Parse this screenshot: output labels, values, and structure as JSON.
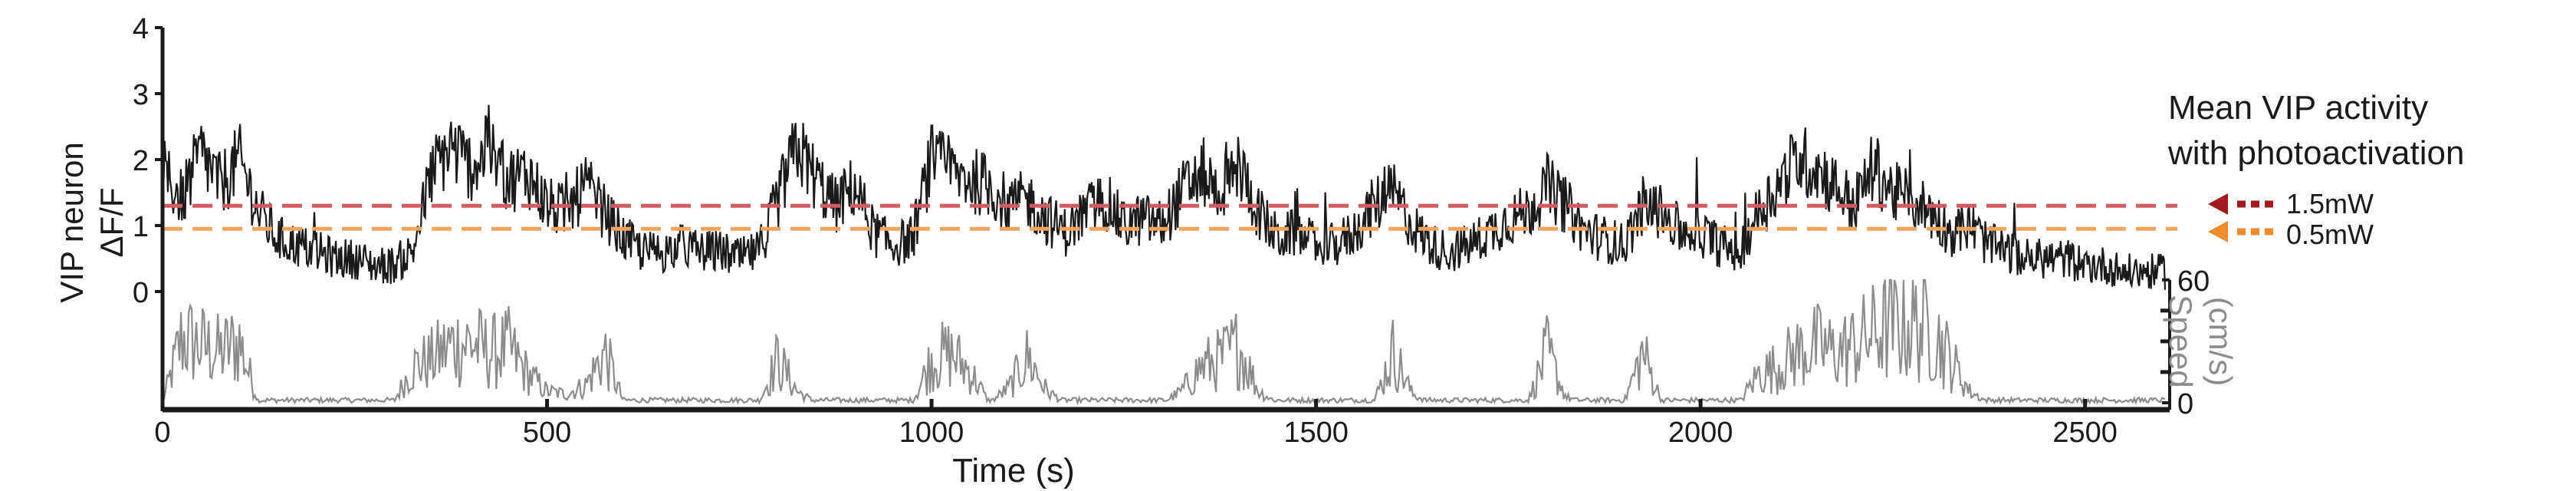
{
  "chart_data": {
    "type": "line",
    "xlabel": "Time (s)",
    "xlim": [
      0,
      2610
    ],
    "x_ticks": [
      0,
      500,
      1000,
      1500,
      2000,
      2500
    ],
    "ylabel_left": [
      "VIP neuron",
      "ΔF/F"
    ],
    "ylim_left": [
      0,
      4
    ],
    "y_ticks_left": [
      0,
      1,
      2,
      3,
      4
    ],
    "ylabel_right": [
      "Speed",
      "(cm/s)"
    ],
    "ylim_right": [
      0,
      60
    ],
    "y_ticks_right": [
      0,
      60
    ],
    "grid": false,
    "colors": {
      "activity_trace": "#1a1a1a",
      "speed_trace": "#8c8c8c",
      "line_1_5mW": "#d45a5e",
      "arrow_1_5mW": "#a3191e",
      "line_0_5mW": "#f5a35c",
      "arrow_0_5mW": "#f08c2c",
      "axis": "#1a1a1a",
      "speed_axis": "#8c8c8c"
    },
    "series": [
      {
        "role": "VIP activity (ΔF/F)",
        "axis": "left",
        "x": [
          0,
          25,
          50,
          75,
          100,
          125,
          150,
          175,
          200,
          225,
          250,
          275,
          300,
          325,
          350,
          375,
          400,
          425,
          450,
          475,
          500,
          525,
          550,
          575,
          600,
          625,
          650,
          675,
          700,
          725,
          750,
          775,
          800,
          825,
          850,
          875,
          900,
          925,
          950,
          975,
          1000,
          1025,
          1050,
          1075,
          1100,
          1125,
          1150,
          1175,
          1200,
          1225,
          1250,
          1275,
          1300,
          1325,
          1350,
          1375,
          1400,
          1425,
          1450,
          1475,
          1500,
          1525,
          1550,
          1575,
          1600,
          1625,
          1650,
          1675,
          1700,
          1725,
          1750,
          1775,
          1800,
          1825,
          1850,
          1875,
          1900,
          1925,
          1950,
          1975,
          2000,
          2025,
          2050,
          2075,
          2100,
          2125,
          2150,
          2175,
          2200,
          2225,
          2250,
          2275,
          2300,
          2325,
          2350,
          2375,
          2400,
          2425,
          2450,
          2475,
          2500,
          2525,
          2550,
          2575,
          2600
        ],
        "values": [
          1.8,
          1.4,
          2.1,
          1.6,
          2.0,
          1.2,
          0.8,
          0.7,
          0.6,
          0.5,
          0.5,
          0.4,
          0.4,
          0.6,
          1.8,
          2.2,
          1.9,
          2.1,
          1.7,
          1.8,
          1.3,
          1.2,
          1.6,
          1.2,
          0.8,
          0.6,
          0.6,
          0.7,
          0.6,
          0.6,
          0.5,
          0.6,
          1.4,
          2.2,
          1.7,
          1.3,
          1.6,
          0.9,
          0.7,
          0.8,
          2.0,
          1.8,
          1.7,
          1.6,
          1.3,
          1.4,
          1.1,
          0.9,
          1.2,
          1.4,
          1.0,
          1.1,
          1.0,
          1.5,
          1.8,
          1.5,
          1.9,
          1.2,
          0.8,
          0.9,
          0.7,
          0.7,
          0.9,
          1.3,
          1.5,
          1.0,
          0.7,
          0.6,
          0.7,
          0.9,
          1.1,
          1.2,
          1.6,
          1.3,
          0.9,
          0.8,
          0.7,
          1.3,
          1.2,
          0.9,
          0.9,
          0.7,
          0.6,
          1.2,
          1.6,
          2.0,
          1.9,
          1.6,
          1.3,
          1.9,
          1.5,
          1.4,
          1.2,
          0.9,
          1.0,
          0.7,
          0.6,
          0.5,
          0.5,
          0.5,
          0.4,
          0.4,
          0.3,
          0.3,
          0.3
        ]
      },
      {
        "role": "Running speed (cm/s)",
        "axis": "right",
        "x": [
          0,
          25,
          50,
          75,
          100,
          125,
          150,
          175,
          200,
          225,
          250,
          275,
          300,
          325,
          350,
          375,
          400,
          425,
          450,
          475,
          500,
          525,
          550,
          575,
          600,
          625,
          650,
          675,
          700,
          725,
          750,
          775,
          800,
          825,
          850,
          875,
          900,
          925,
          950,
          975,
          1000,
          1025,
          1050,
          1075,
          1100,
          1125,
          1150,
          1175,
          1200,
          1225,
          1250,
          1275,
          1300,
          1325,
          1350,
          1375,
          1400,
          1425,
          1450,
          1475,
          1500,
          1525,
          1550,
          1575,
          1600,
          1625,
          1650,
          1675,
          1700,
          1725,
          1750,
          1775,
          1800,
          1825,
          1850,
          1875,
          1900,
          1925,
          1950,
          1975,
          2000,
          2025,
          2050,
          2075,
          2100,
          2125,
          2150,
          2175,
          2200,
          2225,
          2250,
          2275,
          2300,
          2325,
          2350,
          2375,
          2400,
          2425,
          2450,
          2475,
          2500,
          2525,
          2550,
          2575,
          2600
        ],
        "values": [
          0,
          45,
          40,
          35,
          42,
          0,
          0,
          0,
          0,
          0,
          0,
          0,
          0,
          25,
          30,
          40,
          42,
          35,
          38,
          20,
          8,
          6,
          12,
          35,
          0,
          0,
          0,
          0,
          0,
          0,
          0,
          0,
          30,
          8,
          0,
          0,
          0,
          0,
          0,
          0,
          30,
          34,
          22,
          0,
          10,
          32,
          8,
          0,
          0,
          0,
          0,
          0,
          0,
          8,
          25,
          30,
          40,
          8,
          0,
          0,
          0,
          0,
          0,
          0,
          35,
          6,
          0,
          0,
          0,
          0,
          0,
          0,
          35,
          4,
          0,
          0,
          0,
          35,
          0,
          0,
          0,
          0,
          0,
          20,
          25,
          35,
          40,
          35,
          40,
          48,
          55,
          55,
          52,
          30,
          8,
          0,
          0,
          0,
          0,
          0,
          0,
          0,
          0,
          0,
          0
        ]
      }
    ],
    "reference_lines": [
      {
        "label": "1.5mW",
        "value": 1.3
      },
      {
        "label": "0.5mW",
        "value": 0.95
      }
    ],
    "annotation": [
      "Mean VIP activity",
      "with photoactivation"
    ],
    "legend_placement": "right"
  }
}
